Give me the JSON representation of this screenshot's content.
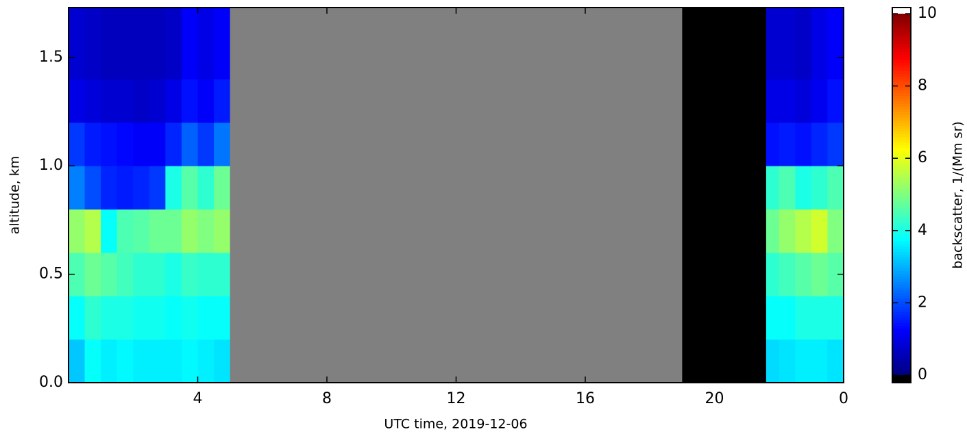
{
  "chart_data": {
    "type": "heatmap",
    "xlabel": "UTC time,  2019-12-06",
    "ylabel": "altitude, km",
    "colorbar_label": "backscatter, 1/(Mm sr)",
    "x_edges": [
      0,
      0.5,
      1,
      1.5,
      2,
      2.5,
      3,
      3.5,
      4,
      4.5,
      5,
      19,
      21.6,
      22,
      22.5,
      23,
      23.5,
      24
    ],
    "y_edges": [
      0,
      0.2,
      0.4,
      0.6,
      0.8,
      1.0,
      1.2,
      1.4,
      1.73
    ],
    "z": [
      [
        3.2,
        3.8,
        4.5,
        5.2,
        2.5,
        1.8,
        1.0,
        0.8
      ],
      [
        3.8,
        4.2,
        4.8,
        5.5,
        2.0,
        1.5,
        0.9,
        0.7
      ],
      [
        3.6,
        4.0,
        4.6,
        3.8,
        1.6,
        1.4,
        0.8,
        0.6
      ],
      [
        3.7,
        4.0,
        4.4,
        4.5,
        1.5,
        1.3,
        0.8,
        0.6
      ],
      [
        3.6,
        3.9,
        4.2,
        4.6,
        1.6,
        1.2,
        0.7,
        0.6
      ],
      [
        3.6,
        3.9,
        4.2,
        4.8,
        1.8,
        1.2,
        0.8,
        0.6
      ],
      [
        3.6,
        3.8,
        4.0,
        4.8,
        4.0,
        1.6,
        1.0,
        0.7
      ],
      [
        3.7,
        3.9,
        4.3,
        5.2,
        4.6,
        2.2,
        1.4,
        1.2
      ],
      [
        3.6,
        3.8,
        4.2,
        5.0,
        4.2,
        1.8,
        1.2,
        1.0
      ],
      [
        3.5,
        3.8,
        4.2,
        5.2,
        4.8,
        2.4,
        1.5,
        1.2
      ],
      [
        null,
        null,
        null,
        null,
        null,
        null,
        null,
        null
      ],
      [
        -0.3,
        -0.3,
        -0.3,
        -0.3,
        -0.3,
        -0.3,
        -0.3,
        -0.3
      ],
      [
        3.4,
        3.8,
        4.2,
        4.8,
        4.2,
        1.4,
        1.0,
        0.8
      ],
      [
        3.5,
        3.8,
        4.4,
        5.2,
        4.5,
        1.5,
        1.0,
        0.8
      ],
      [
        3.6,
        4.0,
        4.6,
        5.5,
        4.0,
        1.4,
        0.9,
        0.7
      ],
      [
        3.6,
        4.0,
        4.8,
        5.8,
        4.2,
        1.6,
        1.1,
        1.0
      ],
      [
        3.5,
        4.0,
        4.6,
        5.0,
        4.5,
        1.8,
        1.4,
        1.2
      ]
    ],
    "xlim": [
      0,
      24
    ],
    "xticks": [
      4,
      8,
      12,
      16,
      20,
      {
        "value": 24,
        "label": "0"
      }
    ],
    "ylim": [
      0,
      1.73
    ],
    "yticks": [
      {
        "value": 0,
        "label": "0.0"
      },
      {
        "value": 0.5,
        "label": "0.5"
      },
      {
        "value": 1.0,
        "label": "1.0"
      },
      {
        "value": 1.5,
        "label": "1.5"
      }
    ],
    "colormap": "jet",
    "clim": [
      0,
      10
    ],
    "cticks": [
      0,
      2,
      4,
      6,
      8,
      10
    ],
    "under_color": "#000000",
    "over_color": "#ffffff",
    "nan_color": "#808080"
  }
}
